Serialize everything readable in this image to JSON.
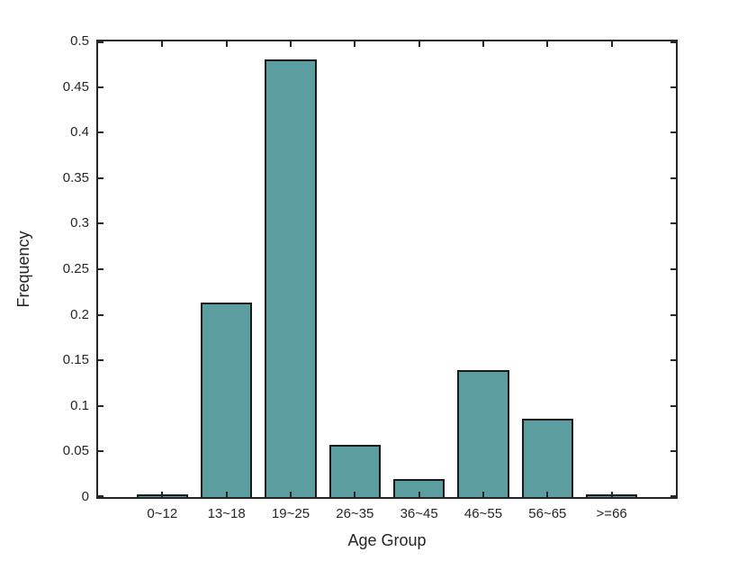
{
  "figure": {
    "background": "#ffffff"
  },
  "chart_data": {
    "type": "bar",
    "title": "",
    "xlabel": "Age Group",
    "ylabel": "Frequency",
    "categories": [
      "0~12",
      "13~18",
      "19~25",
      "26~35",
      "36~45",
      "46~55",
      "56~65",
      ">=66"
    ],
    "values": [
      0.003,
      0.213,
      0.48,
      0.057,
      0.02,
      0.139,
      0.086,
      0.001
    ],
    "ylim": [
      0,
      0.5
    ],
    "xlim_units": [
      0,
      9
    ],
    "yticks": [
      0,
      0.05,
      0.1,
      0.15,
      0.2,
      0.25,
      0.3,
      0.35,
      0.4,
      0.45,
      0.5
    ],
    "ytick_labels": [
      "0",
      "0.05",
      "0.1",
      "0.15",
      "0.2",
      "0.25",
      "0.3",
      "0.35",
      "0.4",
      "0.45",
      "0.5"
    ],
    "bar_width_fraction": 0.8,
    "bar_color": "#5c9ea0",
    "bar_edge_color": "#1a1a1a",
    "axis_color": "#262626",
    "grid": false,
    "legend": null
  }
}
